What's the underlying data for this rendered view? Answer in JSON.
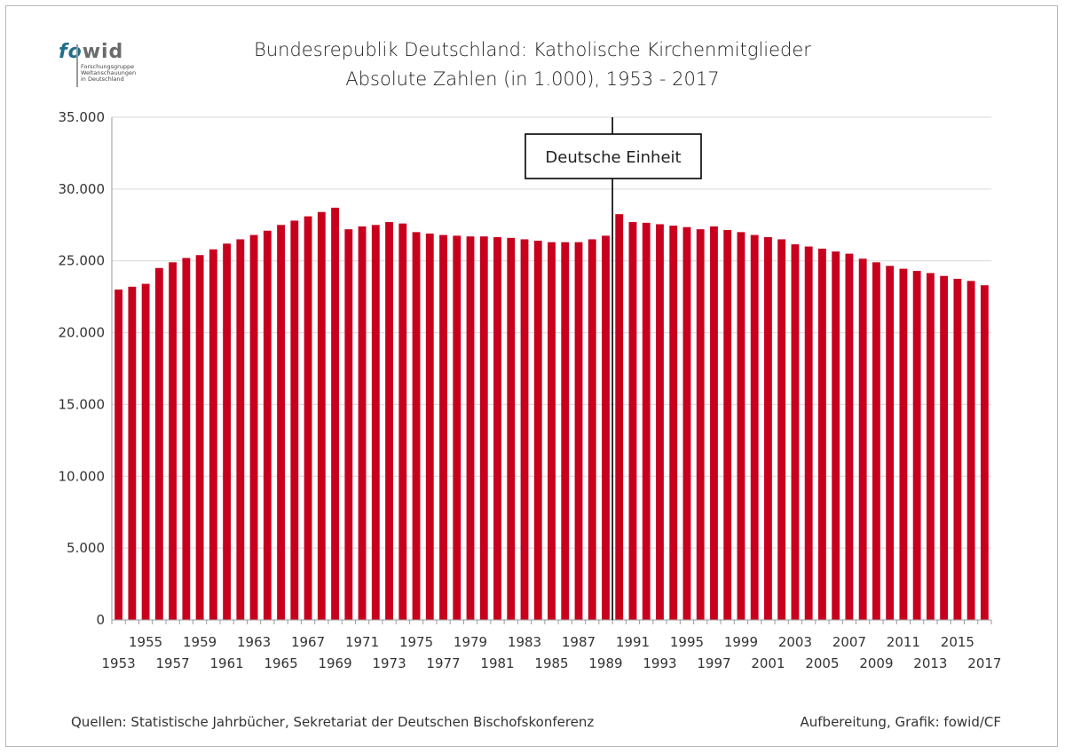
{
  "logo": {
    "fo": "fo",
    "wid": "wid",
    "sub1": "Forschungsgruppe",
    "sub2": "Weltanschauungen",
    "sub3": "in Deutschland"
  },
  "footer": {
    "source": "Quellen: Statistische Jahrbücher, Sekretariat der Deutschen Bischofskonferenz",
    "credit": "Aufbereitung, Grafik: fowid/CF"
  },
  "colors": {
    "bar": "#c8001e",
    "grid": "#d9d9d9",
    "axis": "#9a9a9a"
  },
  "chart_data": {
    "type": "bar",
    "title": "Bundesrepublik Deutschland: Katholische Kirchenmitglieder",
    "subtitle": "Absolute Zahlen (in 1.000), 1953 - 2017",
    "xlabel": "",
    "ylabel": "",
    "ylim": [
      0,
      35000
    ],
    "yticks": [
      0,
      5000,
      10000,
      15000,
      20000,
      25000,
      30000,
      35000
    ],
    "ytick_labels": [
      "0",
      "5.000",
      "10.000",
      "15.000",
      "20.000",
      "25.000",
      "30.000",
      "35.000"
    ],
    "grid": true,
    "categories": [
      1953,
      1954,
      1955,
      1956,
      1957,
      1958,
      1959,
      1960,
      1961,
      1962,
      1963,
      1964,
      1965,
      1966,
      1967,
      1968,
      1969,
      1970,
      1971,
      1972,
      1973,
      1974,
      1975,
      1976,
      1977,
      1978,
      1979,
      1980,
      1981,
      1982,
      1983,
      1984,
      1985,
      1986,
      1987,
      1988,
      1989,
      1990,
      1991,
      1992,
      1993,
      1994,
      1995,
      1996,
      1997,
      1998,
      1999,
      2000,
      2001,
      2002,
      2003,
      2004,
      2005,
      2006,
      2007,
      2008,
      2009,
      2010,
      2011,
      2012,
      2013,
      2014,
      2015,
      2016,
      2017
    ],
    "values": [
      23000,
      23200,
      23400,
      24500,
      24900,
      25200,
      25400,
      25800,
      26200,
      26500,
      26800,
      27100,
      27500,
      27800,
      28100,
      28400,
      28700,
      27200,
      27400,
      27500,
      27700,
      27600,
      27000,
      26900,
      26800,
      26750,
      26700,
      26700,
      26650,
      26600,
      26500,
      26400,
      26300,
      26300,
      26300,
      26500,
      26750,
      28250,
      27700,
      27650,
      27550,
      27450,
      27350,
      27200,
      27400,
      27150,
      27000,
      26800,
      26650,
      26500,
      26150,
      26000,
      25850,
      25650,
      25500,
      25150,
      24900,
      24650,
      24450,
      24300,
      24150,
      23950,
      23750,
      23600,
      23300
    ],
    "annotation": {
      "label": "Deutsche Einheit",
      "between": [
        1989,
        1990
      ]
    }
  }
}
